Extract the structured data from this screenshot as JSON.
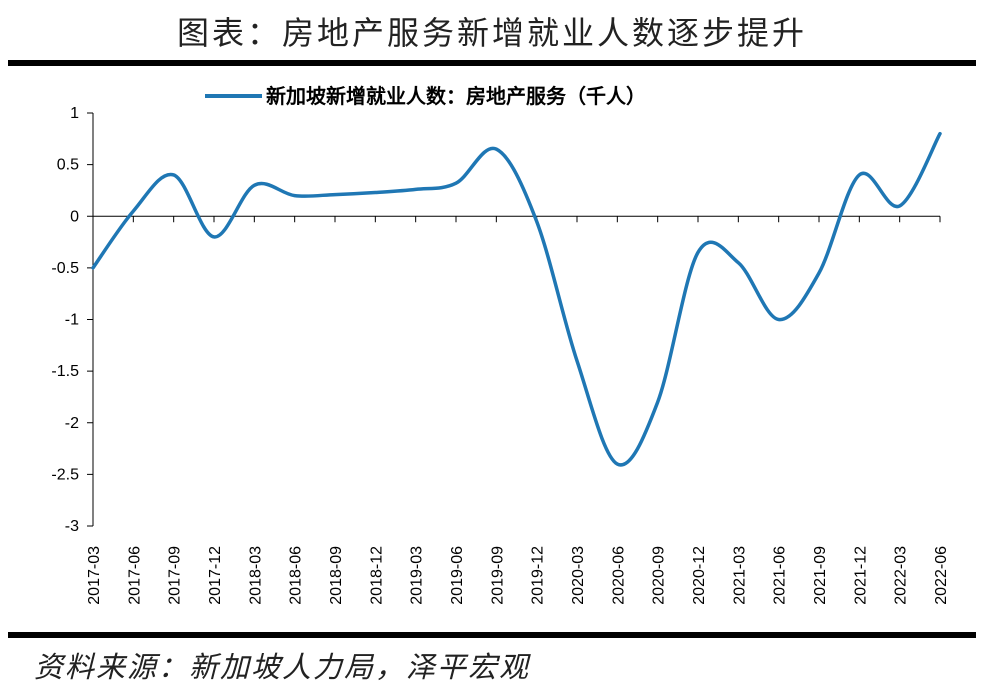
{
  "figure": {
    "title": "图表：房地产服务新增就业人数逐步提升",
    "source": "资料来源：新加坡人力局，泽平宏观"
  },
  "chart_data": {
    "type": "line",
    "x": [
      "2017-03",
      "2017-06",
      "2017-09",
      "2017-12",
      "2018-03",
      "2018-06",
      "2018-09",
      "2018-12",
      "2019-03",
      "2019-06",
      "2019-09",
      "2019-12",
      "2020-03",
      "2020-06",
      "2020-09",
      "2020-12",
      "2021-03",
      "2021-06",
      "2021-09",
      "2021-12",
      "2022-03",
      "2022-06"
    ],
    "series": [
      {
        "name": "新加坡新增就业人数：房地产服务（千人）",
        "values": [
          -0.5,
          0.05,
          0.4,
          -0.2,
          0.3,
          0.2,
          0.21,
          0.23,
          0.26,
          0.32,
          0.65,
          -0.05,
          -1.4,
          -2.4,
          -1.8,
          -0.35,
          -0.45,
          -1.0,
          -0.55,
          0.4,
          0.1,
          0.8
        ]
      }
    ],
    "yticks": [
      "1",
      "0.5",
      "0",
      "-0.5",
      "-1",
      "-1.5",
      "-2",
      "-2.5",
      "-3"
    ],
    "ylim": [
      -3,
      1
    ],
    "grid": false,
    "legend_position": "top-center",
    "colors": {
      "line": "#1f77b4",
      "axis": "#000000"
    }
  }
}
